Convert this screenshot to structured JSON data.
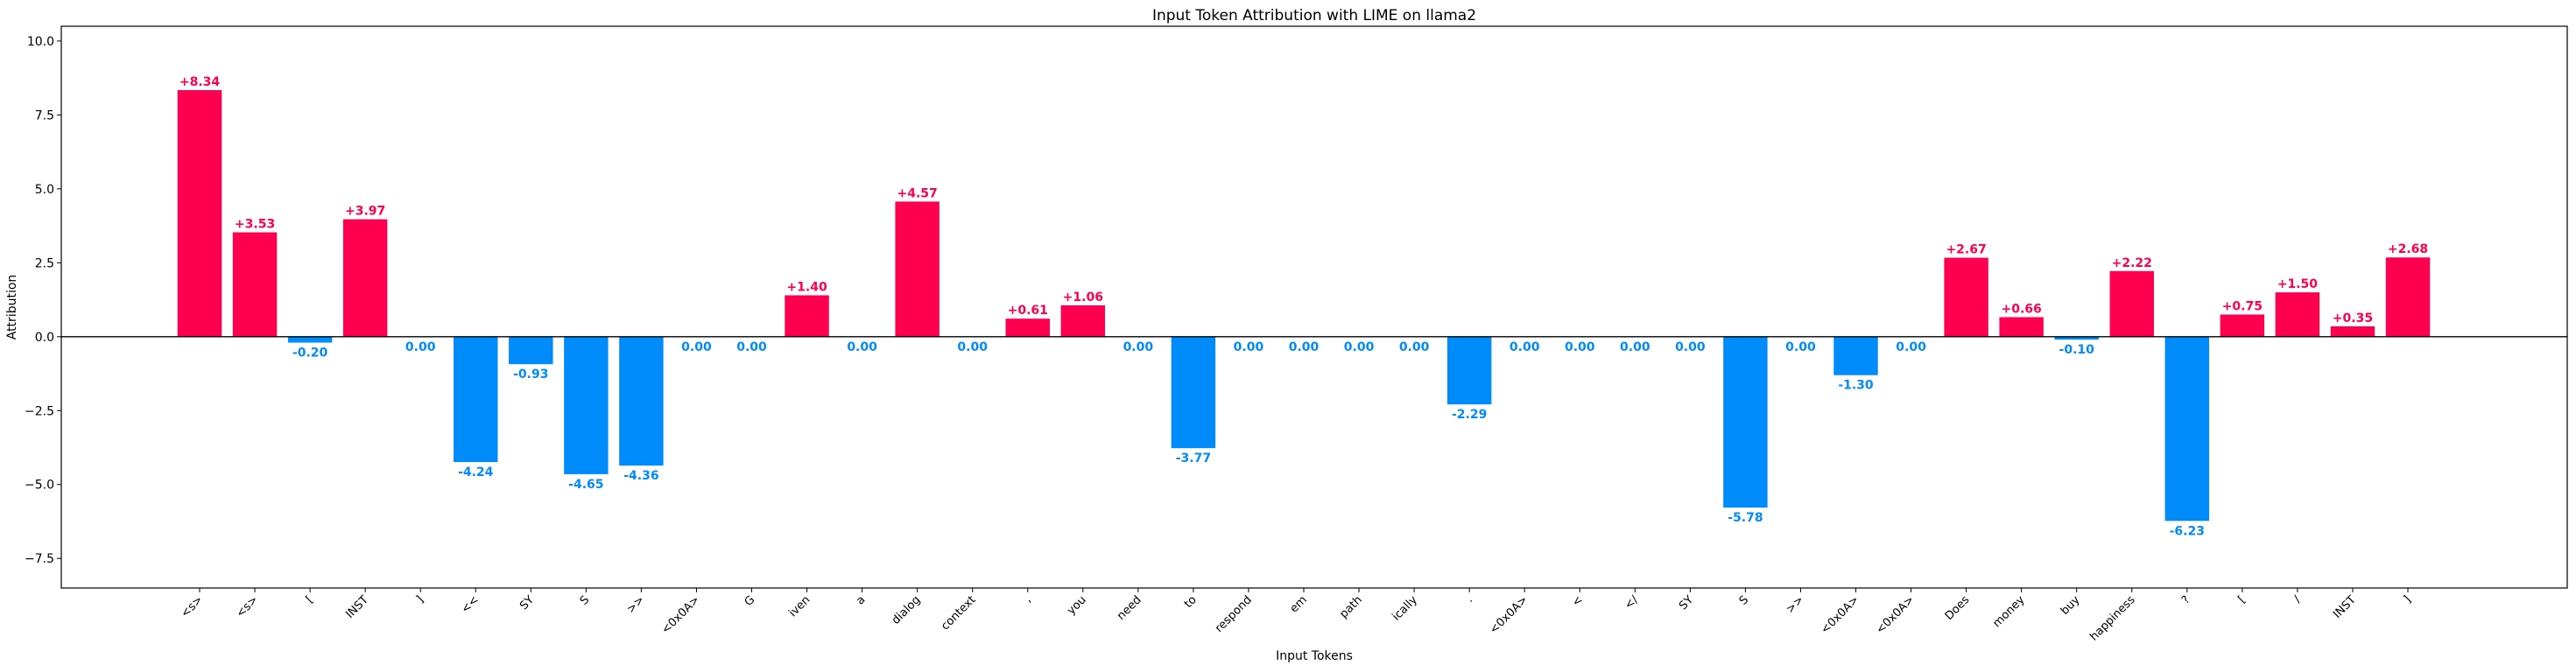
{
  "chart_data": {
    "type": "bar",
    "title": "Input Token Attribution with LIME on llama2",
    "xlabel": "Input Tokens",
    "ylabel": "Attribution",
    "ylim": [
      -8.5,
      10.5
    ],
    "yticks": [
      -7.5,
      -5.0,
      -2.5,
      0.0,
      2.5,
      5.0,
      7.5,
      10.0
    ],
    "ytick_labels": [
      "−7.5",
      "−5.0",
      "−2.5",
      "0.0",
      "2.5",
      "5.0",
      "7.5",
      "10.0"
    ],
    "categories": [
      "<s>",
      "<s>",
      "[",
      "INST",
      "]",
      "<<",
      "SY",
      "S",
      ">>",
      "<0x0A>",
      "G",
      "iven",
      "a",
      "dialog",
      "context",
      ",",
      "you",
      "need",
      "to",
      "respond",
      "em",
      "path",
      "ically",
      ".",
      "<0x0A>",
      "<",
      "</",
      "SY",
      "S",
      ">>",
      "<0x0A>",
      "<0x0A>",
      "Does",
      "money",
      "buy",
      "happiness",
      "?",
      "[",
      "/",
      "INST",
      "]"
    ],
    "values": [
      8.34,
      3.53,
      -0.2,
      3.97,
      0.0,
      -4.24,
      -0.93,
      -4.65,
      -4.36,
      0.0,
      0.0,
      1.4,
      0.0,
      4.57,
      0.0,
      0.61,
      1.06,
      0.0,
      -3.77,
      0.0,
      0.0,
      0.0,
      0.0,
      -2.29,
      0.0,
      0.0,
      0.0,
      0.0,
      -5.78,
      0.0,
      -1.3,
      0.0,
      2.67,
      0.66,
      -0.1,
      2.22,
      -6.23,
      0.75,
      1.5,
      0.35,
      2.68
    ],
    "value_labels": [
      "+8.34",
      "+3.53",
      "-0.20",
      "+3.97",
      "0.00",
      "-4.24",
      "-0.93",
      "-4.65",
      "-4.36",
      "0.00",
      "0.00",
      "+1.40",
      "0.00",
      "+4.57",
      "0.00",
      "+0.61",
      "+1.06",
      "0.00",
      "-3.77",
      "0.00",
      "0.00",
      "0.00",
      "0.00",
      "-2.29",
      "0.00",
      "0.00",
      "0.00",
      "0.00",
      "-5.78",
      "0.00",
      "-1.30",
      "0.00",
      "+2.67",
      "+0.66",
      "-0.10",
      "+2.22",
      "-6.23",
      "+0.75",
      "+1.50",
      "+0.35",
      "+2.68"
    ],
    "colors": {
      "positive": "#ff0051",
      "negative": "#008bfb"
    },
    "grid": false
  }
}
